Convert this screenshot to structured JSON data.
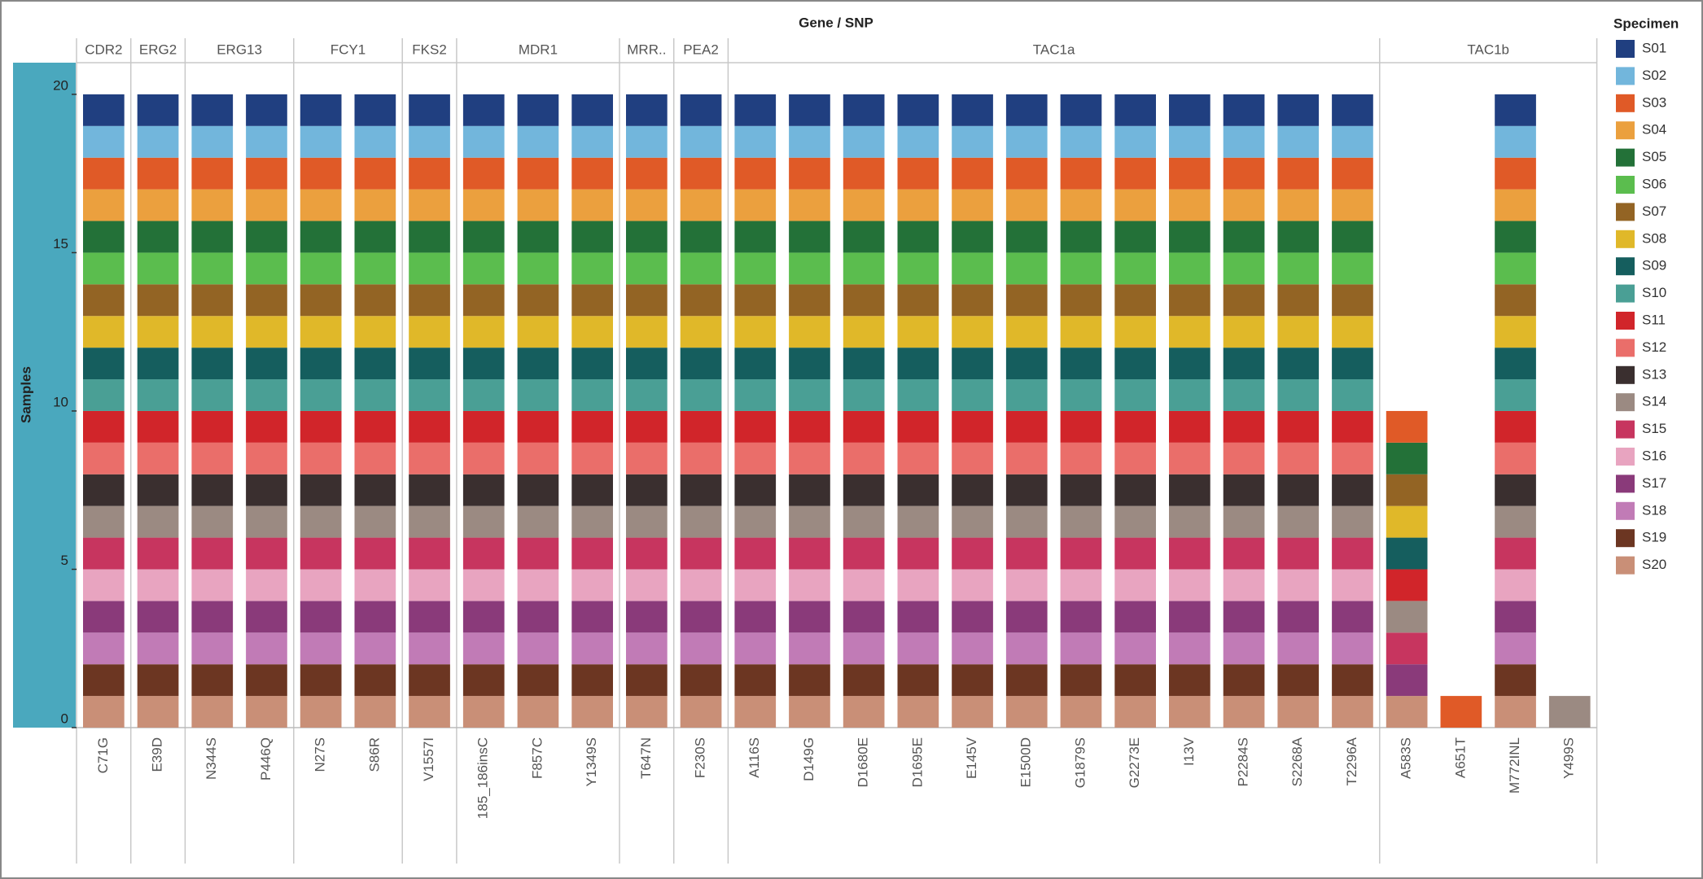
{
  "chart_data": {
    "type": "stacked_bar",
    "title": "Gene / SNP",
    "y_label": "Samples",
    "legend_title": "Specimen",
    "categories": [
      "C71G",
      "E39D",
      "N344S",
      "P446Q",
      "N27S",
      "S86R",
      "V1557I",
      "185_186insC",
      "F857C",
      "Y1349S",
      "T647N",
      "F230S",
      "A116S",
      "D149G",
      "D1680E",
      "D1695E",
      "E145V",
      "E1500D",
      "G1879S",
      "G2273E",
      "I13V",
      "P2284S",
      "S2268A",
      "T2296A",
      "A583S",
      "A651T",
      "M772INL",
      "Y499S"
    ],
    "genes": [
      "CDR2",
      "ERG2",
      "ERG13",
      "ERG13",
      "FCY1",
      "FCY1",
      "FKS2",
      "MDR1",
      "MDR1",
      "MDR1",
      "MRR..",
      "PEA2",
      "TAC1a",
      "TAC1a",
      "TAC1a",
      "TAC1a",
      "TAC1a",
      "TAC1a",
      "TAC1a",
      "TAC1a",
      "TAC1a",
      "TAC1a",
      "TAC1a",
      "TAC1a",
      "TAC1b",
      "TAC1b",
      "TAC1b",
      "TAC1b"
    ],
    "ylim": [
      0,
      21
    ],
    "yticks": [
      0,
      5,
      10,
      15,
      20
    ],
    "series": [
      {
        "name": "S01",
        "color": "#203f80",
        "values": [
          1,
          1,
          1,
          1,
          1,
          1,
          1,
          1,
          1,
          1,
          1,
          1,
          1,
          1,
          1,
          1,
          1,
          1,
          1,
          1,
          1,
          1,
          1,
          1,
          0,
          0,
          1,
          0
        ]
      },
      {
        "name": "S02",
        "color": "#72b6dc",
        "values": [
          1,
          1,
          1,
          1,
          1,
          1,
          1,
          1,
          1,
          1,
          1,
          1,
          1,
          1,
          1,
          1,
          1,
          1,
          1,
          1,
          1,
          1,
          1,
          1,
          0,
          0,
          1,
          0
        ]
      },
      {
        "name": "S03",
        "color": "#e05a27",
        "values": [
          1,
          1,
          1,
          1,
          1,
          1,
          1,
          1,
          1,
          1,
          1,
          1,
          1,
          1,
          1,
          1,
          1,
          1,
          1,
          1,
          1,
          1,
          1,
          1,
          1,
          1,
          1,
          0
        ]
      },
      {
        "name": "S04",
        "color": "#eba03e",
        "values": [
          1,
          1,
          1,
          1,
          1,
          1,
          1,
          1,
          1,
          1,
          1,
          1,
          1,
          1,
          1,
          1,
          1,
          1,
          1,
          1,
          1,
          1,
          1,
          1,
          0,
          0,
          1,
          0
        ]
      },
      {
        "name": "S05",
        "color": "#237138",
        "values": [
          1,
          1,
          1,
          1,
          1,
          1,
          1,
          1,
          1,
          1,
          1,
          1,
          1,
          1,
          1,
          1,
          1,
          1,
          1,
          1,
          1,
          1,
          1,
          1,
          1,
          0,
          1,
          0
        ]
      },
      {
        "name": "S06",
        "color": "#5bbd4e",
        "values": [
          1,
          1,
          1,
          1,
          1,
          1,
          1,
          1,
          1,
          1,
          1,
          1,
          1,
          1,
          1,
          1,
          1,
          1,
          1,
          1,
          1,
          1,
          1,
          1,
          0,
          0,
          1,
          0
        ]
      },
      {
        "name": "S07",
        "color": "#936424",
        "values": [
          1,
          1,
          1,
          1,
          1,
          1,
          1,
          1,
          1,
          1,
          1,
          1,
          1,
          1,
          1,
          1,
          1,
          1,
          1,
          1,
          1,
          1,
          1,
          1,
          1,
          0,
          1,
          0
        ]
      },
      {
        "name": "S08",
        "color": "#e0b829",
        "values": [
          1,
          1,
          1,
          1,
          1,
          1,
          1,
          1,
          1,
          1,
          1,
          1,
          1,
          1,
          1,
          1,
          1,
          1,
          1,
          1,
          1,
          1,
          1,
          1,
          1,
          0,
          1,
          0
        ]
      },
      {
        "name": "S09",
        "color": "#155e5e",
        "values": [
          1,
          1,
          1,
          1,
          1,
          1,
          1,
          1,
          1,
          1,
          1,
          1,
          1,
          1,
          1,
          1,
          1,
          1,
          1,
          1,
          1,
          1,
          1,
          1,
          1,
          0,
          1,
          0
        ]
      },
      {
        "name": "S10",
        "color": "#4a9f95",
        "values": [
          1,
          1,
          1,
          1,
          1,
          1,
          1,
          1,
          1,
          1,
          1,
          1,
          1,
          1,
          1,
          1,
          1,
          1,
          1,
          1,
          1,
          1,
          1,
          1,
          0,
          0,
          1,
          0
        ]
      },
      {
        "name": "S11",
        "color": "#d1252a",
        "values": [
          1,
          1,
          1,
          1,
          1,
          1,
          1,
          1,
          1,
          1,
          1,
          1,
          1,
          1,
          1,
          1,
          1,
          1,
          1,
          1,
          1,
          1,
          1,
          1,
          1,
          0,
          1,
          0
        ]
      },
      {
        "name": "S12",
        "color": "#ea6e6a",
        "values": [
          1,
          1,
          1,
          1,
          1,
          1,
          1,
          1,
          1,
          1,
          1,
          1,
          1,
          1,
          1,
          1,
          1,
          1,
          1,
          1,
          1,
          1,
          1,
          1,
          0,
          0,
          1,
          0
        ]
      },
      {
        "name": "S13",
        "color": "#3a2f2f",
        "values": [
          1,
          1,
          1,
          1,
          1,
          1,
          1,
          1,
          1,
          1,
          1,
          1,
          1,
          1,
          1,
          1,
          1,
          1,
          1,
          1,
          1,
          1,
          1,
          1,
          0,
          0,
          1,
          0
        ]
      },
      {
        "name": "S14",
        "color": "#9b8a82",
        "values": [
          1,
          1,
          1,
          1,
          1,
          1,
          1,
          1,
          1,
          1,
          1,
          1,
          1,
          1,
          1,
          1,
          1,
          1,
          1,
          1,
          1,
          1,
          1,
          1,
          1,
          0,
          1,
          1
        ]
      },
      {
        "name": "S15",
        "color": "#c7355f",
        "values": [
          1,
          1,
          1,
          1,
          1,
          1,
          1,
          1,
          1,
          1,
          1,
          1,
          1,
          1,
          1,
          1,
          1,
          1,
          1,
          1,
          1,
          1,
          1,
          1,
          1,
          0,
          1,
          0
        ]
      },
      {
        "name": "S16",
        "color": "#e8a4c0",
        "values": [
          1,
          1,
          1,
          1,
          1,
          1,
          1,
          1,
          1,
          1,
          1,
          1,
          1,
          1,
          1,
          1,
          1,
          1,
          1,
          1,
          1,
          1,
          1,
          1,
          0,
          0,
          1,
          0
        ]
      },
      {
        "name": "S17",
        "color": "#8a3a7a",
        "values": [
          1,
          1,
          1,
          1,
          1,
          1,
          1,
          1,
          1,
          1,
          1,
          1,
          1,
          1,
          1,
          1,
          1,
          1,
          1,
          1,
          1,
          1,
          1,
          1,
          1,
          0,
          1,
          0
        ]
      },
      {
        "name": "S18",
        "color": "#c17bb6",
        "values": [
          1,
          1,
          1,
          1,
          1,
          1,
          1,
          1,
          1,
          1,
          1,
          1,
          1,
          1,
          1,
          1,
          1,
          1,
          1,
          1,
          1,
          1,
          1,
          1,
          0,
          0,
          1,
          0
        ]
      },
      {
        "name": "S19",
        "color": "#6c3622",
        "values": [
          1,
          1,
          1,
          1,
          1,
          1,
          1,
          1,
          1,
          1,
          1,
          1,
          1,
          1,
          1,
          1,
          1,
          1,
          1,
          1,
          1,
          1,
          1,
          1,
          0,
          0,
          1,
          0
        ]
      },
      {
        "name": "S20",
        "color": "#c98f77",
        "values": [
          1,
          1,
          1,
          1,
          1,
          1,
          1,
          1,
          1,
          1,
          1,
          1,
          1,
          1,
          1,
          1,
          1,
          1,
          1,
          1,
          1,
          1,
          1,
          1,
          1,
          0,
          1,
          0
        ]
      }
    ]
  }
}
